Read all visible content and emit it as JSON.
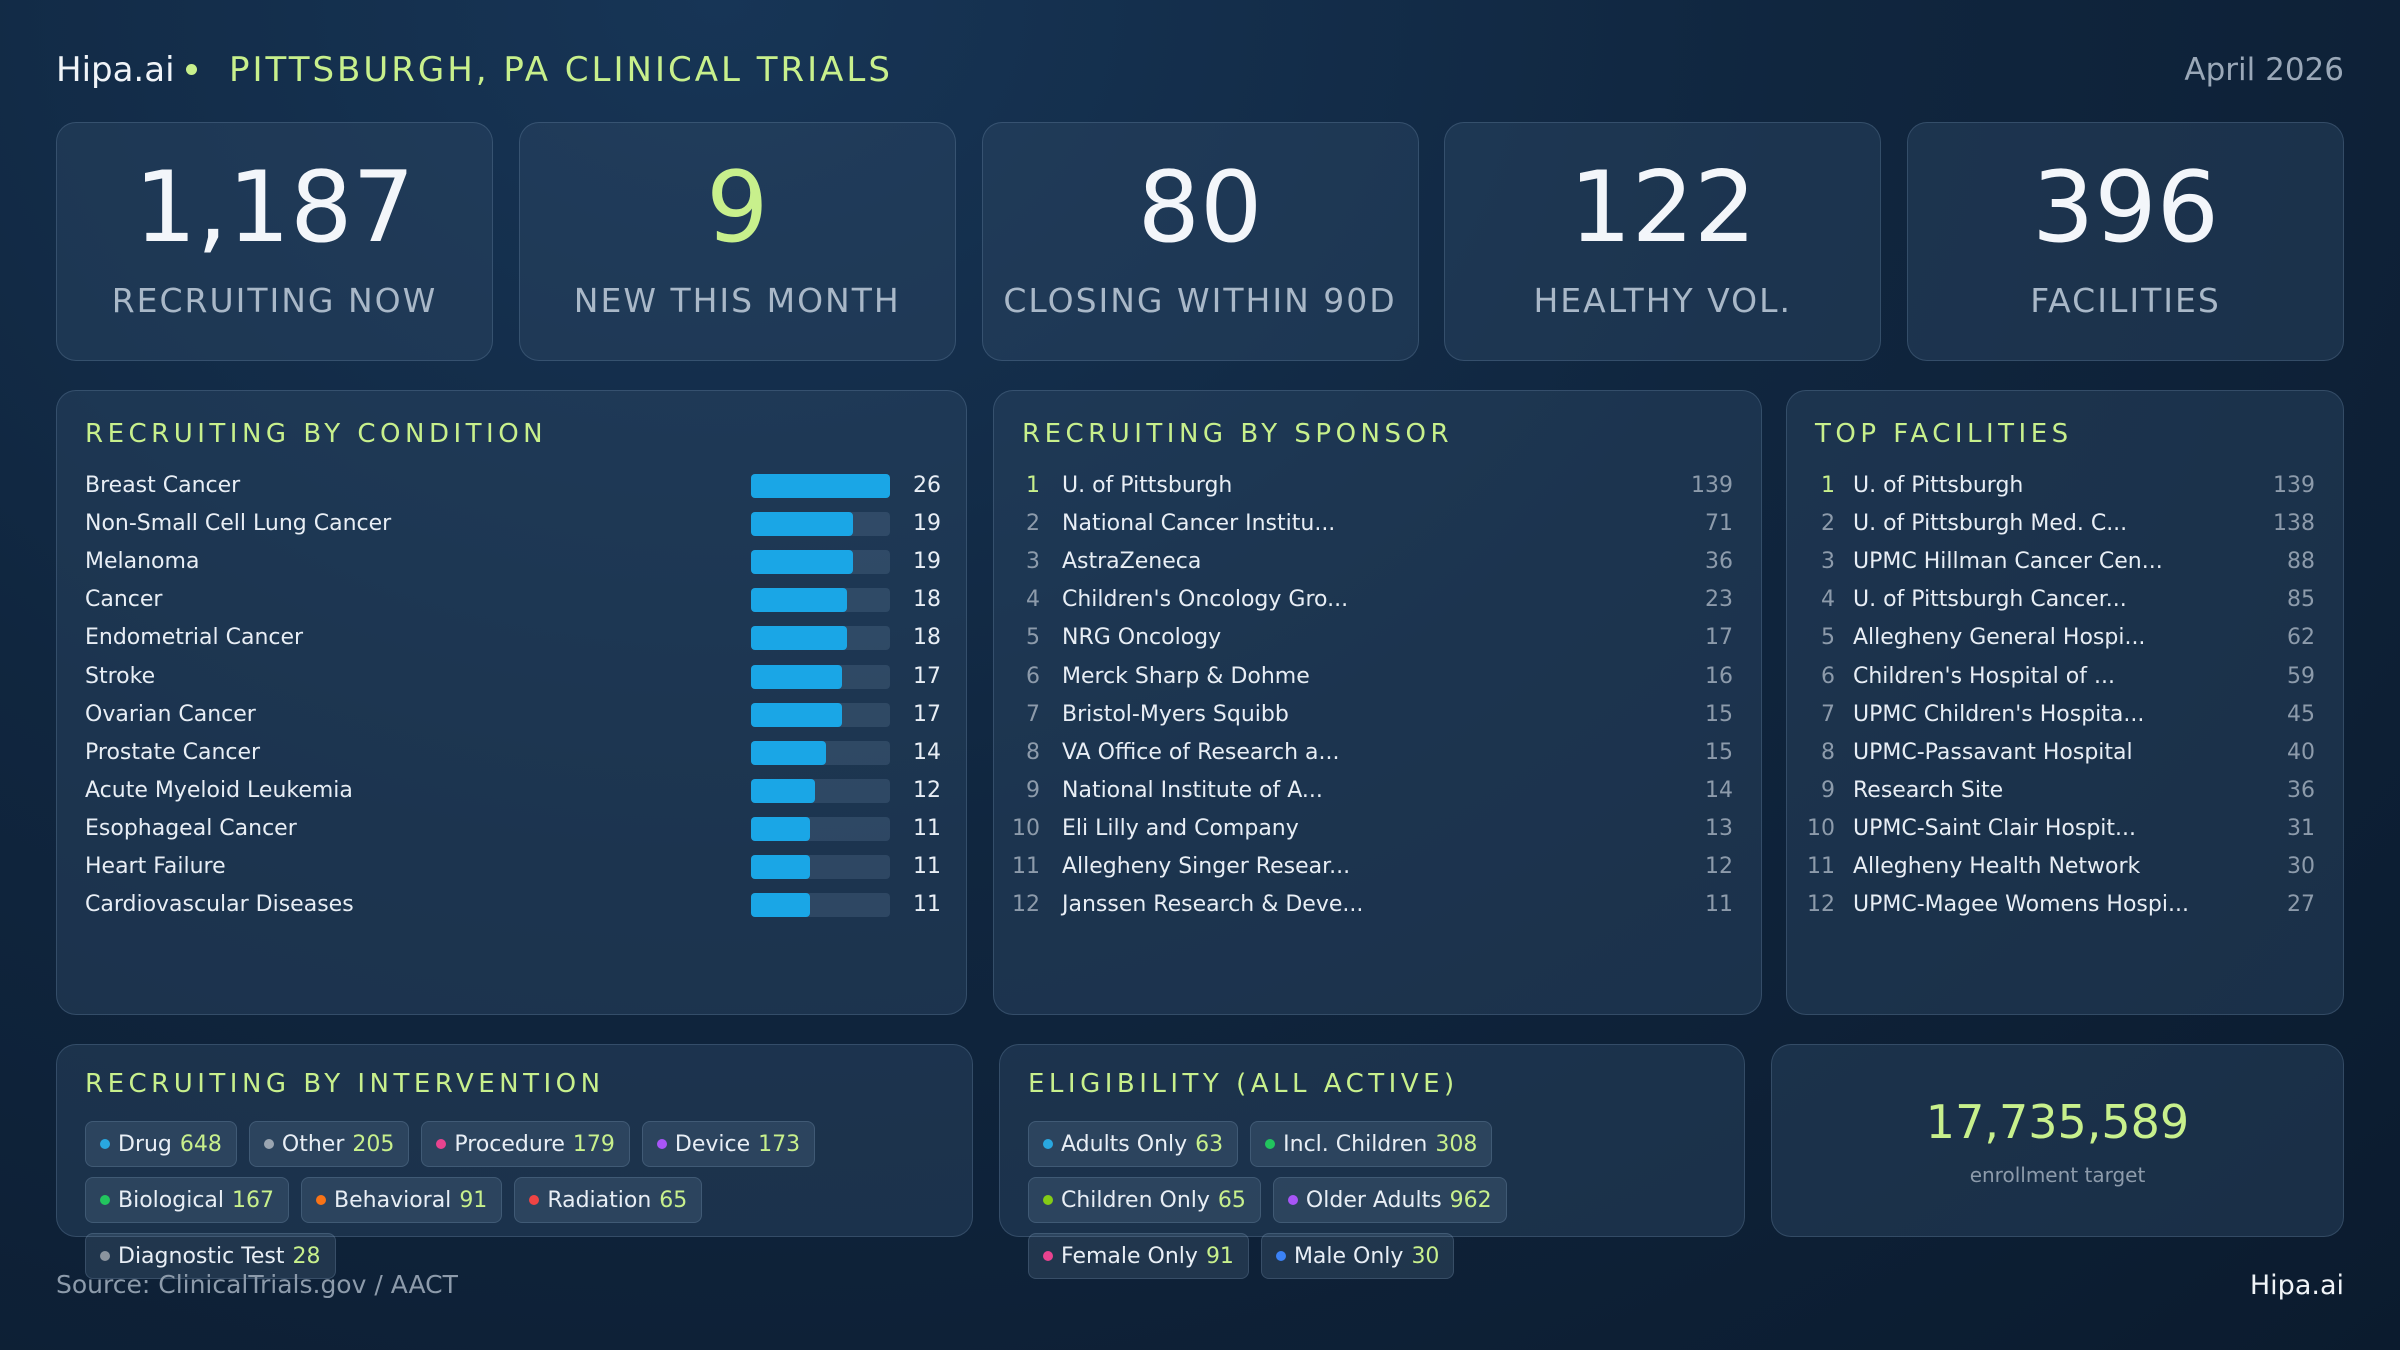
{
  "header": {
    "brand": "Hipa.ai",
    "title": "PITTSBURGH, PA CLINICAL TRIALS",
    "date": "April 2026"
  },
  "kpis": [
    {
      "value": "1,187",
      "label": "RECRUITING NOW"
    },
    {
      "value": "9",
      "label": "NEW THIS MONTH",
      "highlight": true
    },
    {
      "value": "80",
      "label": "CLOSING WITHIN 90D"
    },
    {
      "value": "122",
      "label": "HEALTHY VOL."
    },
    {
      "value": "396",
      "label": "FACILITIES"
    }
  ],
  "chart_data": {
    "type": "bar",
    "orientation": "horizontal",
    "title": "RECRUITING BY CONDITION",
    "categories": [
      "Breast Cancer",
      "Non-Small Cell Lung Cancer",
      "Melanoma",
      "Cancer",
      "Endometrial Cancer",
      "Stroke",
      "Ovarian Cancer",
      "Prostate Cancer",
      "Acute Myeloid Leukemia",
      "Esophageal Cancer",
      "Heart Failure",
      "Cardiovascular Diseases"
    ],
    "values": [
      26,
      19,
      19,
      18,
      18,
      17,
      17,
      14,
      12,
      11,
      11,
      11
    ],
    "color": "#1aa6e6"
  },
  "sponsors": {
    "title": "RECRUITING BY SPONSOR",
    "rows": [
      {
        "rank": 1,
        "name": "U. of Pittsburgh",
        "count": 139
      },
      {
        "rank": 2,
        "name": "National Cancer Institu...",
        "count": 71
      },
      {
        "rank": 3,
        "name": "AstraZeneca",
        "count": 36
      },
      {
        "rank": 4,
        "name": "Children's Oncology Gro...",
        "count": 23
      },
      {
        "rank": 5,
        "name": "NRG Oncology",
        "count": 17
      },
      {
        "rank": 6,
        "name": "Merck Sharp & Dohme",
        "count": 16
      },
      {
        "rank": 7,
        "name": "Bristol-Myers Squibb",
        "count": 15
      },
      {
        "rank": 8,
        "name": "VA Office of Research a...",
        "count": 15
      },
      {
        "rank": 9,
        "name": "National Institute of A...",
        "count": 14
      },
      {
        "rank": 10,
        "name": "Eli Lilly and Company",
        "count": 13
      },
      {
        "rank": 11,
        "name": "Allegheny Singer Resear...",
        "count": 12
      },
      {
        "rank": 12,
        "name": "Janssen Research & Deve...",
        "count": 11
      }
    ]
  },
  "facilities": {
    "title": "TOP FACILITIES",
    "rows": [
      {
        "rank": 1,
        "name": "U. of Pittsburgh",
        "count": 139
      },
      {
        "rank": 2,
        "name": "U. of Pittsburgh Med. C...",
        "count": 138
      },
      {
        "rank": 3,
        "name": "UPMC Hillman Cancer Cen...",
        "count": 88
      },
      {
        "rank": 4,
        "name": "U. of Pittsburgh Cancer...",
        "count": 85
      },
      {
        "rank": 5,
        "name": "Allegheny General Hospi...",
        "count": 62
      },
      {
        "rank": 6,
        "name": "Children's Hospital of ...",
        "count": 59
      },
      {
        "rank": 7,
        "name": "UPMC Children's Hospita...",
        "count": 45
      },
      {
        "rank": 8,
        "name": "UPMC-Passavant Hospital",
        "count": 40
      },
      {
        "rank": 9,
        "name": "Research Site",
        "count": 36
      },
      {
        "rank": 10,
        "name": "UPMC-Saint Clair Hospit...",
        "count": 31
      },
      {
        "rank": 11,
        "name": "Allegheny Health Network",
        "count": 30
      },
      {
        "rank": 12,
        "name": "UPMC-Magee Womens Hospi...",
        "count": 27
      }
    ]
  },
  "interventions": {
    "title": "RECRUITING BY INTERVENTION",
    "items": [
      {
        "name": "Drug",
        "count": 648,
        "color": "#29a8e0"
      },
      {
        "name": "Other",
        "count": 205,
        "color": "#9aa5b1"
      },
      {
        "name": "Procedure",
        "count": 179,
        "color": "#e8438f"
      },
      {
        "name": "Device",
        "count": 173,
        "color": "#a855f7"
      },
      {
        "name": "Biological",
        "count": 167,
        "color": "#22c55e"
      },
      {
        "name": "Behavioral",
        "count": 91,
        "color": "#f97316"
      },
      {
        "name": "Radiation",
        "count": 65,
        "color": "#ef4444"
      },
      {
        "name": "Diagnostic Test",
        "count": 28,
        "color": "#8b949e"
      }
    ]
  },
  "eligibility": {
    "title": "ELIGIBILITY (ALL ACTIVE)",
    "items": [
      {
        "name": "Adults Only",
        "count": 63,
        "color": "#29a8e0"
      },
      {
        "name": "Incl. Children",
        "count": 308,
        "color": "#22c55e"
      },
      {
        "name": "Children Only",
        "count": 65,
        "color": "#84cc16"
      },
      {
        "name": "Older Adults",
        "count": 962,
        "color": "#a855f7"
      },
      {
        "name": "Female Only",
        "count": 91,
        "color": "#e8438f"
      },
      {
        "name": "Male Only",
        "count": 30,
        "color": "#3b82f6"
      }
    ]
  },
  "enrollment": {
    "value": "17,735,589",
    "label": "enrollment target"
  },
  "footer": {
    "source": "Source: ClinicalTrials.gov / AACT",
    "brand": "Hipa.ai"
  }
}
